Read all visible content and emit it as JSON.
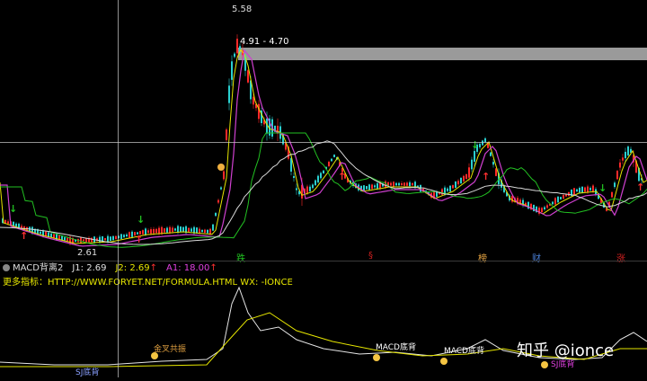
{
  "price_labels": {
    "high": "5.58",
    "range": "4.91 - 4.70",
    "low": "2.61"
  },
  "day_markers": [
    {
      "text": "跌",
      "color": "#21c021"
    },
    {
      "text": "§",
      "color": "#d02020"
    },
    {
      "text": "榜",
      "color": "#e0a040"
    },
    {
      "text": "财",
      "color": "#4a7fd6"
    },
    {
      "text": "涨",
      "color": "#d02020"
    }
  ],
  "indicator": {
    "name": "MACD背离2",
    "j1": "J1: 2.69",
    "j2": "J2: 2.69",
    "a1": "A1: 18.00",
    "colors": {
      "j1": "#e0e0e0",
      "j2": "#e6e600",
      "a1": "#e040e0"
    }
  },
  "formula_line": "更多指标：HTTP://WWW.FORYET.NET/FORMULA.HTML    WX: -IONCE",
  "sub_labels": {
    "golden_cross": "金叉共振",
    "macd_bottom_1": "MACD底背",
    "macd_bottom_2": "MACD底背",
    "bottom_left": "SJ底背",
    "bottom_right": "SJ底背"
  },
  "watermark": "知乎 @ionce",
  "colors": {
    "up": "#ff2a2a",
    "down": "#2ad0d0",
    "ma_white": "#d8d8d8",
    "ma_yellow": "#e6e600",
    "ma_magenta": "#d040d0",
    "ma_green": "#22c022",
    "ma_grey": "#b0b0b0"
  }
}
